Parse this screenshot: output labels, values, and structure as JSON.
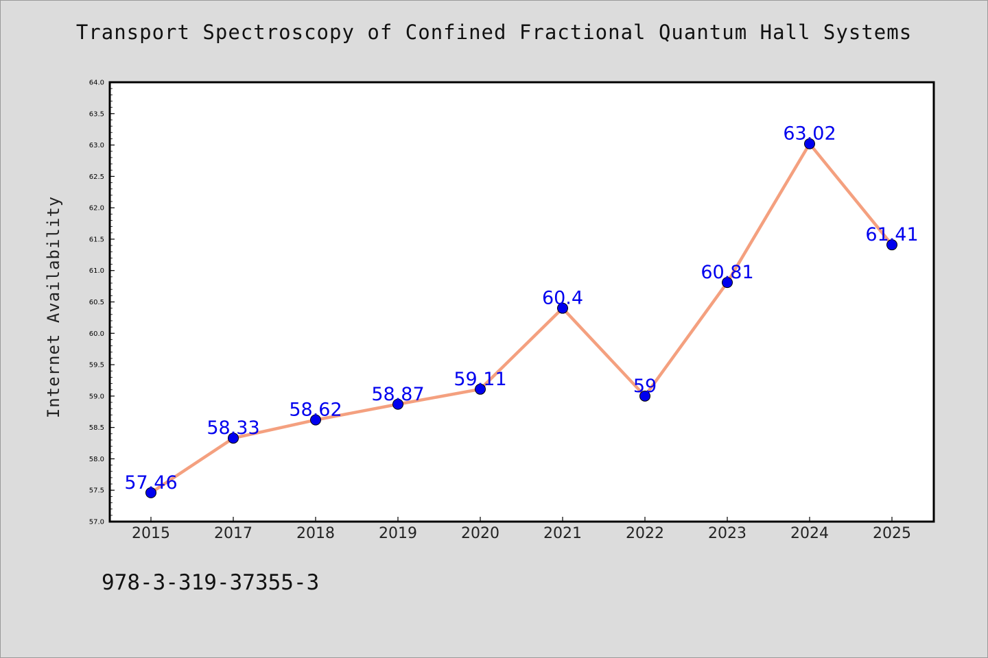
{
  "chart_data": {
    "type": "line",
    "title": "Transport Spectroscopy of Confined Fractional Quantum Hall Systems",
    "xlabel": "",
    "ylabel": "Internet Availability",
    "categories": [
      "2015",
      "2017",
      "2018",
      "2019",
      "2020",
      "2021",
      "2022",
      "2023",
      "2024",
      "2025"
    ],
    "values": [
      57.46,
      58.33,
      58.62,
      58.87,
      59.11,
      60.4,
      59,
      60.81,
      63.02,
      61.41
    ],
    "data_labels": [
      "57.46",
      "58.33",
      "58.62",
      "58.87",
      "59.11",
      "60.4",
      "59",
      "60.81",
      "63.02",
      "61.41"
    ],
    "ylim": [
      57.0,
      64.0
    ],
    "yticks": [
      "57.0",
      "57.5",
      "58.0",
      "58.5",
      "59.0",
      "59.5",
      "60.0",
      "60.5",
      "61.0",
      "61.5",
      "62.0",
      "62.5",
      "63.0",
      "63.5",
      "64.0"
    ],
    "grid": false,
    "legend": "none",
    "colors": {
      "line": "#f4a07f",
      "marker": "#0000ee",
      "label": "#0000ee",
      "background": "#dcdcdc",
      "plot_background": "#ffffff"
    }
  },
  "footer": {
    "isbn": "978-3-319-37355-3"
  }
}
